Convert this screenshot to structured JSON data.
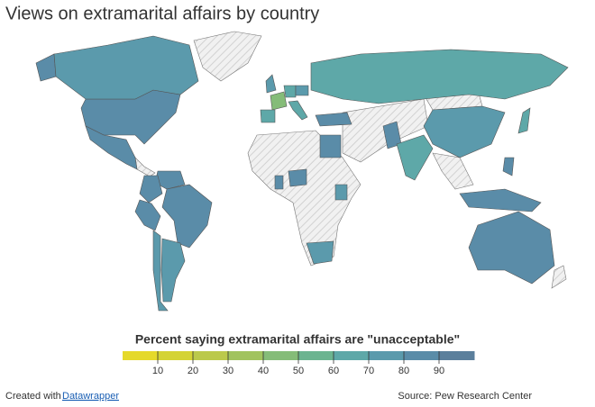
{
  "title": "Views on extramarital affairs by country",
  "map": {
    "values": [
      84,
      74,
      80,
      85,
      85,
      80,
      80,
      72,
      70,
      76,
      47,
      64,
      60,
      64,
      79,
      69,
      84,
      80,
      80,
      84,
      72,
      74,
      87,
      62,
      74,
      69,
      88,
      80,
      80
    ]
  },
  "legend": {
    "title": "Percent saying extramarital affairs are \"unacceptable\"",
    "range": [
      0,
      100
    ],
    "ticks": [
      10,
      20,
      30,
      40,
      50,
      60,
      70,
      80,
      90
    ],
    "colors": [
      "#e5d92b",
      "#d4d335",
      "#bbc94b",
      "#a1c35f",
      "#85bc78",
      "#6cb490",
      "#5ea8a8",
      "#5b9aac",
      "#5a8ca8",
      "#5b7f9c"
    ]
  },
  "footer": {
    "credit": "Created with",
    "link": "Datawrapper",
    "source": "Source: Pew Research Center"
  }
}
